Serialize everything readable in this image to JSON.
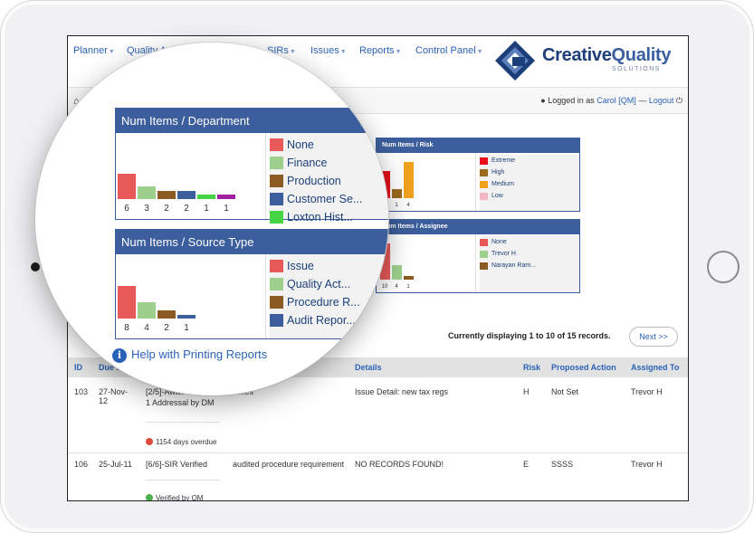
{
  "nav": [
    {
      "label": "Planner",
      "left": 6
    },
    {
      "label": "Quality A…",
      "left": 65
    },
    {
      "label": "SIRs",
      "left": 220
    },
    {
      "label": "Issues",
      "left": 268
    },
    {
      "label": "Reports",
      "left": 322
    },
    {
      "label": "Control Panel",
      "left": 384
    }
  ],
  "logo": {
    "word1": "Creative",
    "word2": "Quality",
    "tagline": "SOLUTIONS"
  },
  "login": {
    "prefix": "Logged in as ",
    "user": "Carol [QM]",
    "sep": " — ",
    "logout": "Logout"
  },
  "panels": {
    "risk": {
      "title": "Num Items / Risk",
      "legend": [
        {
          "label": "Extreme",
          "color": "#e8101a"
        },
        {
          "label": "High",
          "color": "#9b6a1d"
        },
        {
          "label": "Medium",
          "color": "#f0a21e"
        },
        {
          "label": "Low",
          "color": "#f4b6c2"
        }
      ],
      "bars": [
        {
          "v": 3,
          "label": "3"
        },
        {
          "v": 1,
          "label": "1"
        },
        {
          "v": 4,
          "label": "4"
        }
      ]
    },
    "assignee": {
      "title": "Num Items / Assignee",
      "legend": [
        {
          "label": "None",
          "color": "#e85a5a"
        },
        {
          "label": "Trevor H",
          "color": "#9dd08c"
        },
        {
          "label": "Narayan Ram...",
          "color": "#8c5a22"
        }
      ],
      "bars": [
        {
          "v": 10,
          "label": "10"
        },
        {
          "v": 4,
          "label": "4"
        },
        {
          "v": 1,
          "label": "1"
        }
      ]
    }
  },
  "magnified": {
    "department": {
      "title": "Num Items / Department",
      "legend": [
        {
          "label": "None",
          "color": "#e85a5a"
        },
        {
          "label": "Finance",
          "color": "#9dd08c"
        },
        {
          "label": "Production",
          "color": "#8c5a22"
        },
        {
          "label": "Customer Se...",
          "color": "#3d5e9c"
        },
        {
          "label": "Loxton Hist...",
          "color": "#44d444"
        }
      ],
      "bars": [
        {
          "v": 6,
          "label": "6",
          "color": "#e85a5a"
        },
        {
          "v": 3,
          "label": "3",
          "color": "#9dd08c"
        },
        {
          "v": 2,
          "label": "2",
          "color": "#8c5a22"
        },
        {
          "v": 2,
          "label": "2",
          "color": "#3d5e9c"
        },
        {
          "v": 1,
          "label": "1",
          "color": "#44d444"
        },
        {
          "v": 1,
          "label": "1",
          "color": "#a020a0"
        }
      ]
    },
    "source": {
      "title": "Num Items / Source Type",
      "legend": [
        {
          "label": "Issue",
          "color": "#e85a5a"
        },
        {
          "label": "Quality Act...",
          "color": "#9dd08c"
        },
        {
          "label": "Procedure R...",
          "color": "#8c5a22"
        },
        {
          "label": "Audit Repor...",
          "color": "#3d5e9c"
        }
      ],
      "bars": [
        {
          "v": 8,
          "label": "8",
          "color": "#e85a5a"
        },
        {
          "v": 4,
          "label": "4",
          "color": "#9dd08c"
        },
        {
          "v": 2,
          "label": "2",
          "color": "#8c5a22"
        },
        {
          "v": 1,
          "label": "1",
          "color": "#3d5e9c"
        }
      ]
    },
    "help_link": "Help with Printing Reports"
  },
  "records_text": "Currently displaying 1 to 10 of 15 records.",
  "next_label": "Next >>",
  "table": {
    "headers": [
      "ID",
      "Due D",
      "Details",
      "Risk",
      "Proposed Action",
      "Assigned To"
    ],
    "rows": [
      {
        "id": "103",
        "due": "27-Nov-\n12",
        "status": "[2/5]-Awa...",
        "status2": "1 Addressal by DM",
        "link": "...es",
        "details": "Issue Detail: new tax regs",
        "risk": "H",
        "action": "Not Set",
        "assigned": "Trevor H",
        "overdue": "1154 days overdue"
      },
      {
        "id": "106",
        "due": "25-Jul-11",
        "status": "[6/6]-SIR Verified",
        "link": "audited procedure requirement",
        "details": "NO RECORDS FOUND!",
        "risk": "E",
        "action": "SSSS",
        "assigned": "Trevor H",
        "verified": "Verified by QM"
      }
    ]
  }
}
